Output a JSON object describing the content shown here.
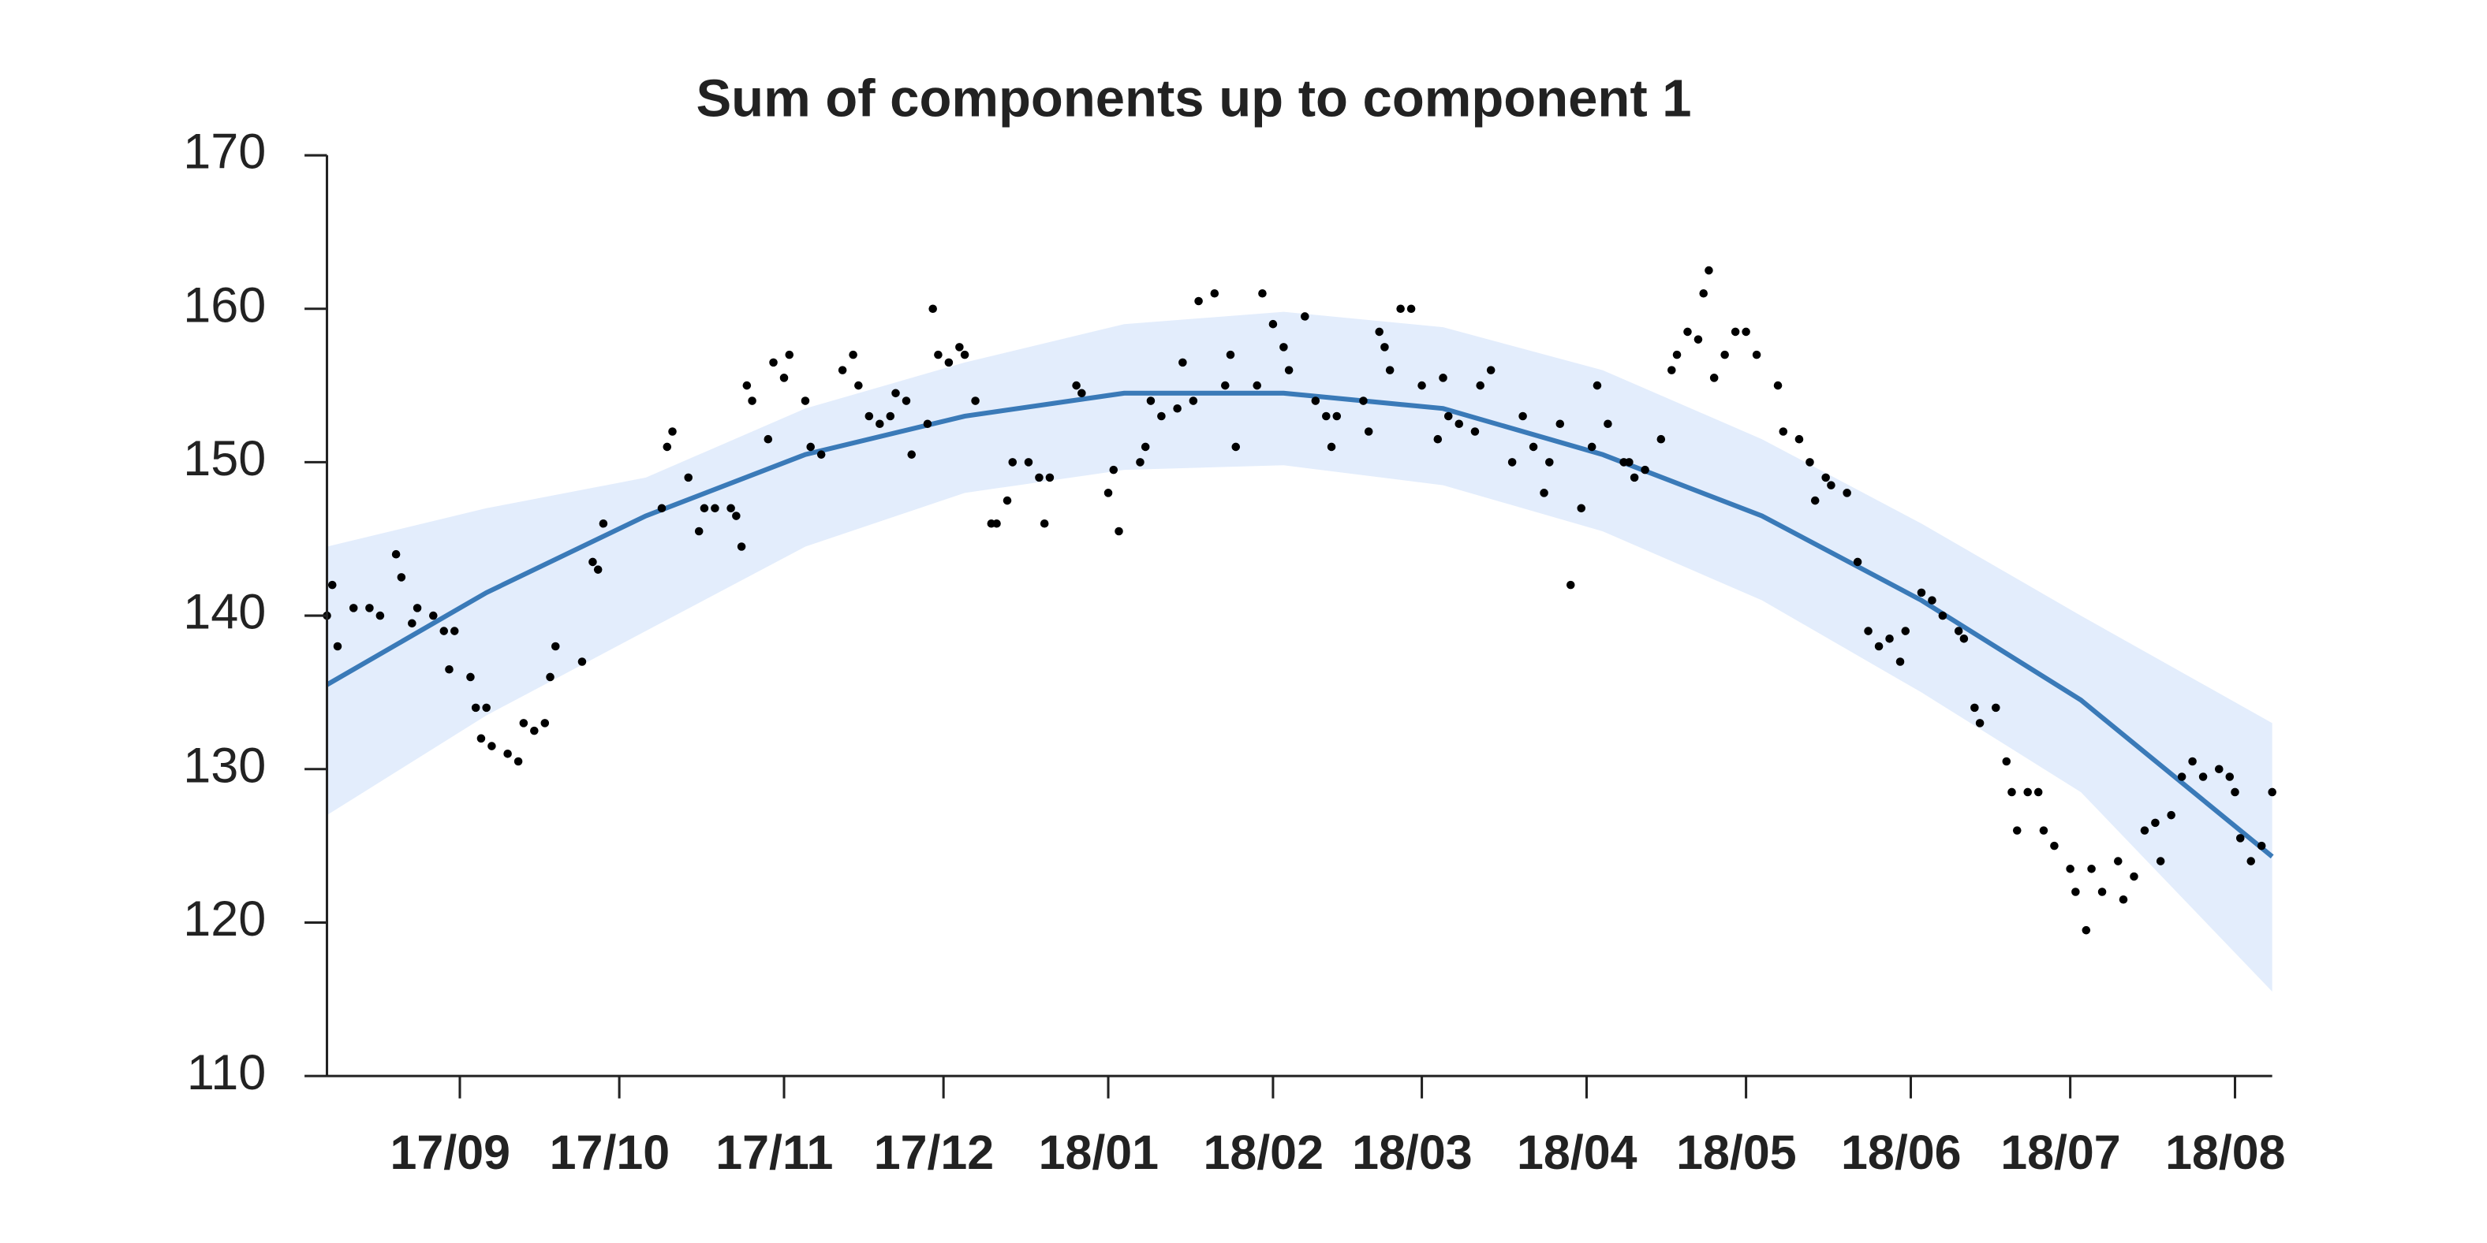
{
  "chart_data": {
    "type": "scatter",
    "title": "Sum of components up to component 1",
    "xlim": [
      0,
      366
    ],
    "ylim": [
      110,
      170
    ],
    "yticks": [
      110,
      120,
      130,
      140,
      150,
      160,
      170
    ],
    "xticks": [
      {
        "value": 25,
        "label": "17/09"
      },
      {
        "value": 55,
        "label": "17/10"
      },
      {
        "value": 86,
        "label": "17/11"
      },
      {
        "value": 116,
        "label": "17/12"
      },
      {
        "value": 147,
        "label": "18/01"
      },
      {
        "value": 178,
        "label": "18/02"
      },
      {
        "value": 206,
        "label": "18/03"
      },
      {
        "value": 237,
        "label": "18/04"
      },
      {
        "value": 267,
        "label": "18/05"
      },
      {
        "value": 298,
        "label": "18/06"
      },
      {
        "value": 328,
        "label": "18/07"
      },
      {
        "value": 359,
        "label": "18/08"
      }
    ],
    "grid": false,
    "series": [
      {
        "type": "band",
        "color": "#e3edfc",
        "x": [
          0,
          30,
          60,
          90,
          120,
          150,
          180,
          210,
          240,
          270,
          300,
          330,
          366
        ],
        "upper": [
          144.5,
          147,
          149,
          153.5,
          156.5,
          159,
          159.8,
          158.8,
          156,
          151.5,
          146,
          140,
          133
        ],
        "lower": [
          127,
          133.5,
          139,
          144.5,
          148,
          149.5,
          149.8,
          148.5,
          145.5,
          141,
          135,
          128.5,
          115.5
        ]
      },
      {
        "type": "line",
        "color": "#3a7ab8",
        "x": [
          0,
          30,
          60,
          90,
          120,
          150,
          180,
          210,
          240,
          270,
          300,
          330,
          366
        ],
        "values": [
          135.5,
          141.5,
          146.5,
          150.5,
          153,
          154.5,
          154.5,
          153.5,
          150.5,
          146.5,
          141,
          134.5,
          124.3
        ]
      },
      {
        "type": "scatter",
        "color": "#000000",
        "x": [
          0,
          1,
          2,
          5,
          8,
          10,
          13,
          14,
          16,
          17,
          20,
          22,
          24,
          23,
          27,
          28,
          30,
          29,
          31,
          34,
          36,
          37,
          39,
          41,
          42,
          43,
          48,
          50,
          51,
          52,
          63,
          64,
          65,
          68,
          70,
          71,
          73,
          76,
          77,
          78,
          79,
          80,
          83,
          84,
          86,
          87,
          90,
          91,
          93,
          97,
          99,
          100,
          102,
          104,
          106,
          107,
          109,
          110,
          113,
          114,
          115,
          117,
          119,
          120,
          122,
          125,
          126,
          128,
          129,
          132,
          134,
          135,
          136,
          141,
          142,
          147,
          148,
          149,
          153,
          154,
          155,
          157,
          160,
          161,
          163,
          164,
          167,
          169,
          170,
          171,
          175,
          176,
          178,
          180,
          181,
          184,
          186,
          188,
          189,
          190,
          195,
          196,
          198,
          199,
          200,
          202,
          204,
          206,
          209,
          210,
          211,
          213,
          216,
          217,
          219,
          223,
          225,
          227,
          229,
          230,
          232,
          234,
          236,
          238,
          239,
          241,
          244,
          245,
          246,
          248,
          251,
          253,
          254,
          256,
          258,
          259,
          260,
          261,
          263,
          265,
          267,
          269,
          273,
          274,
          277,
          279,
          280,
          282,
          283,
          286,
          288,
          290,
          292,
          294,
          296,
          297,
          300,
          302,
          304,
          307,
          308,
          310,
          311,
          314,
          316,
          317,
          318,
          320,
          322,
          323,
          325,
          328,
          329,
          331,
          332,
          334,
          337,
          338,
          340,
          342,
          344,
          345,
          347,
          349,
          351,
          353,
          356,
          358,
          359,
          360,
          362,
          364,
          366
        ],
        "values": [
          140,
          142,
          138,
          140.5,
          140.5,
          140,
          144,
          142.5,
          139.5,
          140.5,
          140,
          139,
          139,
          136.5,
          136,
          134,
          134,
          132,
          131.5,
          131,
          130.5,
          133,
          132.5,
          133,
          136,
          138,
          137,
          143.5,
          143,
          146,
          147,
          151,
          152,
          149,
          145.5,
          147,
          147,
          147,
          146.5,
          144.5,
          155,
          154,
          151.5,
          156.5,
          155.5,
          157,
          154,
          151,
          150.5,
          156,
          157,
          155,
          153,
          152.5,
          153,
          154.5,
          154,
          150.5,
          152.5,
          160,
          157,
          156.5,
          157.5,
          157,
          154,
          146,
          146,
          147.5,
          150,
          150,
          149,
          146,
          149,
          155,
          154.5,
          148,
          149.5,
          145.5,
          150,
          151,
          154,
          153,
          153.5,
          156.5,
          154,
          160.5,
          161,
          155,
          157,
          151,
          155,
          161,
          159,
          157.5,
          156,
          159.5,
          154,
          153,
          151,
          153,
          154,
          152,
          158.5,
          157.5,
          156,
          160,
          160,
          155,
          151.5,
          155.5,
          153,
          152.5,
          152,
          155,
          156,
          150,
          153,
          151,
          148,
          150,
          152.5,
          142,
          147,
          151,
          155,
          152.5,
          150,
          150,
          149,
          149.5,
          151.5,
          156,
          157,
          158.5,
          158,
          161,
          162.5,
          155.5,
          157,
          158.5,
          158.5,
          157,
          155,
          152,
          151.5,
          150,
          147.5,
          149,
          148.5,
          148,
          143.5,
          139,
          138,
          138.5,
          137,
          139,
          141.5,
          141,
          140,
          139,
          138.5,
          134,
          133,
          134,
          130.5,
          128.5,
          126,
          128.5,
          128.5,
          126,
          125,
          123.5,
          122,
          119.5,
          123.5,
          122,
          124,
          121.5,
          123,
          126,
          126.5,
          124,
          127,
          129.5,
          130.5,
          129.5,
          130,
          129.5,
          128.5,
          125.5,
          124,
          125,
          128.5
        ]
      }
    ]
  }
}
